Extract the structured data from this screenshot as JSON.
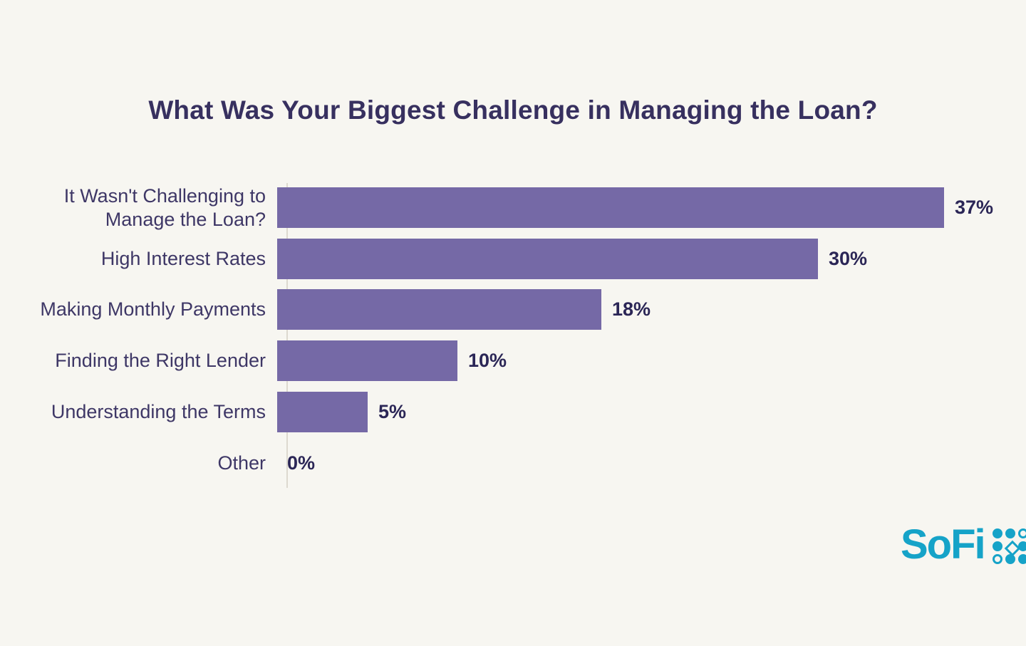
{
  "page": {
    "background_note": "static infographic, no interactive chrome"
  },
  "chart_data": {
    "type": "bar",
    "orientation": "horizontal",
    "title": "What Was Your Biggest Challenge in Managing the Loan?",
    "categories": [
      "It Wasn't Challenging to Manage the Loan?",
      "High Interest Rates",
      "Making Monthly Payments",
      "Finding the Right Lender",
      "Understanding the Terms",
      "Other"
    ],
    "values": [
      37,
      30,
      18,
      10,
      5,
      0
    ],
    "value_labels": [
      "37%",
      "30%",
      "18%",
      "10%",
      "5%",
      "0%"
    ],
    "xlabel": "",
    "ylabel": "",
    "xlim": [
      0,
      40
    ],
    "grid": false,
    "legend": false,
    "bar_color": "#7569a6",
    "value_label_position": "outside-end"
  },
  "colors": {
    "background": "#f7f6f1",
    "bar": "#7569a6",
    "title": "#37305f",
    "label": "#3e3766",
    "value": "#2b2656",
    "axis": "#ddd9d0",
    "brand_teal": "#16a3c8"
  },
  "footer": {
    "brand": "SoFi",
    "trademark": "®",
    "logo_grid_pattern": [
      "dot",
      "dot",
      "ring",
      "dot",
      "diamond",
      "dot",
      "ring",
      "dot",
      "dot"
    ]
  }
}
